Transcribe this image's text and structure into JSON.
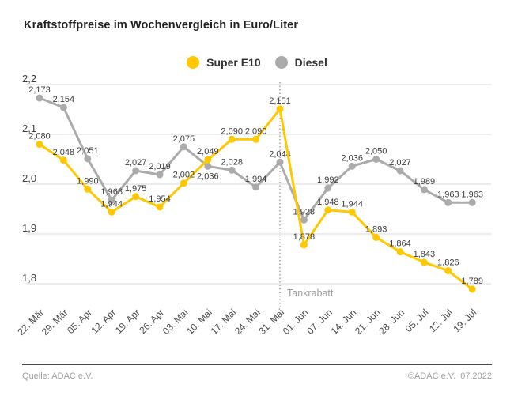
{
  "title": "Kraftstoffpreise im Wochenvergleich in Euro/Liter",
  "chart_data": {
    "type": "line",
    "title": "Kraftstoffpreise im Wochenvergleich in Euro/Liter",
    "unit": "Euro/Liter",
    "categories": [
      "22. Mär",
      "29. Mär",
      "05. Apr",
      "12. Apr",
      "19. Apr",
      "26. Apr",
      "03. Mai",
      "10. Mai",
      "17. Mai",
      "24. Mai",
      "31. Mai",
      "01. Jun",
      "07. Jun",
      "14. Jun",
      "21. Jun",
      "28. Jun",
      "05. Jul",
      "12. Jul",
      "19. Jul"
    ],
    "series": [
      {
        "name": "Super E10",
        "color": "#FFC800",
        "values": [
          2.08,
          2.048,
          1.99,
          1.944,
          1.975,
          1.954,
          2.002,
          2.049,
          2.09,
          2.09,
          2.151,
          1.878,
          1.948,
          1.944,
          1.893,
          1.864,
          1.843,
          1.826,
          1.789
        ]
      },
      {
        "name": "Diesel",
        "color": "#ABABAB",
        "values": [
          2.173,
          2.154,
          2.051,
          1.968,
          2.027,
          2.019,
          2.075,
          2.036,
          2.028,
          1.994,
          2.044,
          1.928,
          1.992,
          2.036,
          2.05,
          2.027,
          1.989,
          1.963,
          1.963
        ]
      }
    ],
    "ylim": [
      1.8,
      2.2
    ],
    "yticks": [
      2.2,
      2.1,
      2.0,
      1.9,
      1.8
    ],
    "grid": true,
    "legend_position": "top-center",
    "annotation": {
      "label": "Tankrabatt",
      "category": "31. Mai"
    },
    "label_overrides": [
      {
        "series": 1,
        "index": 7,
        "dx": 0,
        "dy": 16
      }
    ],
    "colors": {
      "grid": "#d9d9d9",
      "axis_text": "#4a4a4a",
      "point_label": "#3d3d3d",
      "annotation": "#9b9b9b"
    }
  },
  "footer": {
    "source": "Quelle: ADAC e.V.",
    "copyright": "©ADAC e.V.  07.2022"
  }
}
